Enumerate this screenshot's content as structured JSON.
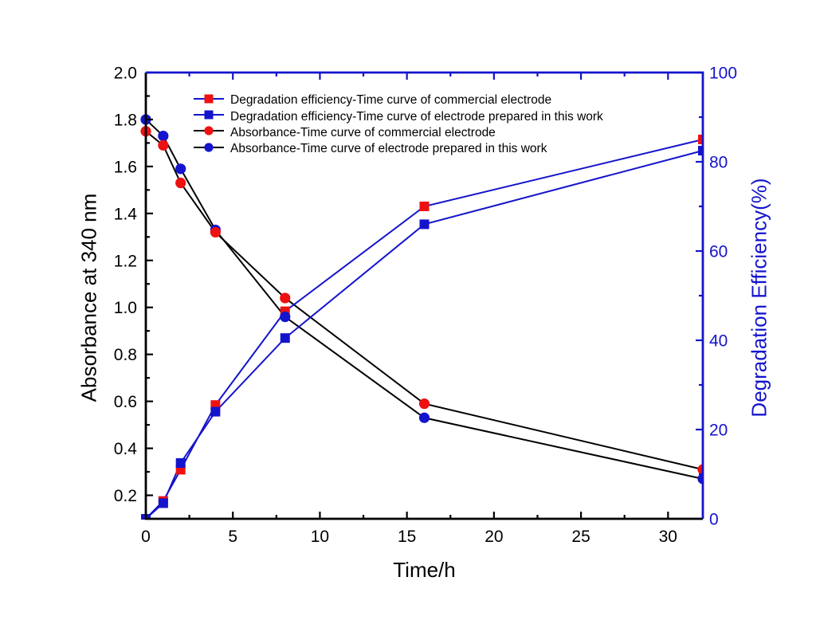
{
  "chart_data": {
    "type": "line",
    "title": "",
    "x": [
      0,
      1,
      2,
      4,
      8,
      16,
      32
    ],
    "x_axis": {
      "label": "Time/h",
      "min": 0,
      "max": 32,
      "major_ticks": [
        0,
        5,
        10,
        15,
        20,
        25,
        30
      ],
      "major_tick_labels": [
        "0",
        "5",
        "10",
        "15",
        "20",
        "25",
        "30"
      ],
      "minor_ticks": [
        2.5,
        7.5,
        12.5,
        17.5,
        22.5,
        27.5
      ],
      "color": "#000000"
    },
    "y_left_axis": {
      "label": "Absorbance at 340 nm",
      "min": 0.1,
      "max": 2.0,
      "major_ticks": [
        0.2,
        0.4,
        0.6,
        0.8,
        1.0,
        1.2,
        1.4,
        1.6,
        1.8,
        2.0
      ],
      "major_tick_labels": [
        "0.2",
        "0.4",
        "0.6",
        "0.8",
        "1.0",
        "1.2",
        "1.4",
        "1.6",
        "1.8",
        "2.0"
      ],
      "minor_ticks": [
        0.3,
        0.5,
        0.7,
        0.9,
        1.1,
        1.3,
        1.5,
        1.7,
        1.9
      ],
      "color": "#000000"
    },
    "y_right_axis": {
      "label": "Degradation Efficiency(%)",
      "min": 0,
      "max": 100,
      "major_ticks": [
        0,
        20,
        40,
        60,
        80,
        100
      ],
      "major_tick_labels": [
        "0",
        "20",
        "40",
        "60",
        "80",
        "100"
      ],
      "minor_ticks": [
        10,
        30,
        50,
        70,
        90
      ],
      "color": "#1414cc"
    },
    "series": [
      {
        "name": "Degradation efficiency-Time curve of commercial electrode",
        "axis": "right",
        "marker": "square",
        "marker_color": "#ee1111",
        "line_color": "#1414cc",
        "values": [
          0,
          4,
          11,
          25.5,
          46.5,
          70,
          85
        ]
      },
      {
        "name": "Degradation efficiency-Time curve of electrode prepared in this work",
        "axis": "right",
        "marker": "square",
        "marker_color": "#1414cc",
        "line_color": "#1414cc",
        "values": [
          0,
          3.5,
          12.5,
          24,
          40.5,
          66,
          82.5
        ]
      },
      {
        "name": "Absorbance-Time curve of commercial electrode",
        "axis": "left",
        "marker": "circle",
        "marker_color": "#ee1111",
        "line_color": "#000000",
        "values": [
          1.75,
          1.69,
          1.53,
          1.32,
          1.04,
          0.59,
          0.31
        ]
      },
      {
        "name": "Absorbance-Time curve of electrode prepared in this work",
        "axis": "left",
        "marker": "circle",
        "marker_color": "#1414cc",
        "line_color": "#000000",
        "values": [
          1.8,
          1.73,
          1.59,
          1.33,
          0.96,
          0.53,
          0.27
        ]
      }
    ],
    "legend_position": "top-left-inside",
    "grid": false
  },
  "legend": {
    "items": [
      {
        "label": "Degradation efficiency-Time curve of commercial electrode",
        "line_color": "#1414cc",
        "marker": "square",
        "marker_color": "#ee1111"
      },
      {
        "label": "Degradation efficiency-Time curve of electrode prepared in this work",
        "line_color": "#1414cc",
        "marker": "square",
        "marker_color": "#1414cc"
      },
      {
        "label": "Absorbance-Time curve of commercial electrode",
        "line_color": "#000000",
        "marker": "circle",
        "marker_color": "#ee1111"
      },
      {
        "label": "Absorbance-Time curve of electrode prepared in this work",
        "line_color": "#000000",
        "marker": "circle",
        "marker_color": "#1414cc"
      }
    ]
  },
  "titles": {
    "x": "Time/h",
    "y_left": "Absorbance at 340 nm",
    "y_right": "Degradation Efficiency(%)"
  },
  "colors": {
    "red": "#ee1111",
    "blue": "#1414cc",
    "black": "#000000",
    "background": "#ffffff"
  }
}
